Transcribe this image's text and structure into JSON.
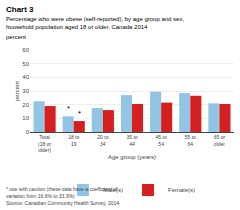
{
  "chart_data": {
    "type": "bar",
    "title": "Chart 3",
    "subtitle": "Percentage who were obese (self-reported), by age group and sex,\nhousehold population aged 18 or older, Canada 2014",
    "xlabel": "Age group (years)",
    "ylabel": "percent",
    "categories": [
      "Total (18 or\nolder)",
      "18 to 19",
      "20 to 34",
      "35 to 44",
      "45 to 54",
      "55 to 64",
      "65 or older"
    ],
    "series": [
      {
        "name": "Male(s)",
        "color": "#92c4e4",
        "values": [
          22.5,
          11.5,
          17.5,
          27.0,
          29.5,
          28.5,
          21.0
        ]
      },
      {
        "name": "Female(s)",
        "color": "#d42020",
        "values": [
          19.0,
          8.0,
          16.0,
          20.5,
          21.5,
          26.5,
          20.5
        ]
      }
    ],
    "ylim": [
      0,
      60
    ],
    "yticks": [
      0,
      10,
      20,
      30,
      40,
      50,
      60
    ],
    "grid": true,
    "legend": "bottom",
    "annotations": [
      {
        "text": "*",
        "category": "18 to 19",
        "series": "Male(s)"
      },
      {
        "text": "*",
        "category": "18 to 19",
        "series": "Female(s)"
      },
      {
        "text": "* use with caution (these data have a coefficient of variation from 16.6% to 33.3%)"
      },
      {
        "text": "Source: Canadian Community Health Survey, 2014"
      }
    ]
  }
}
